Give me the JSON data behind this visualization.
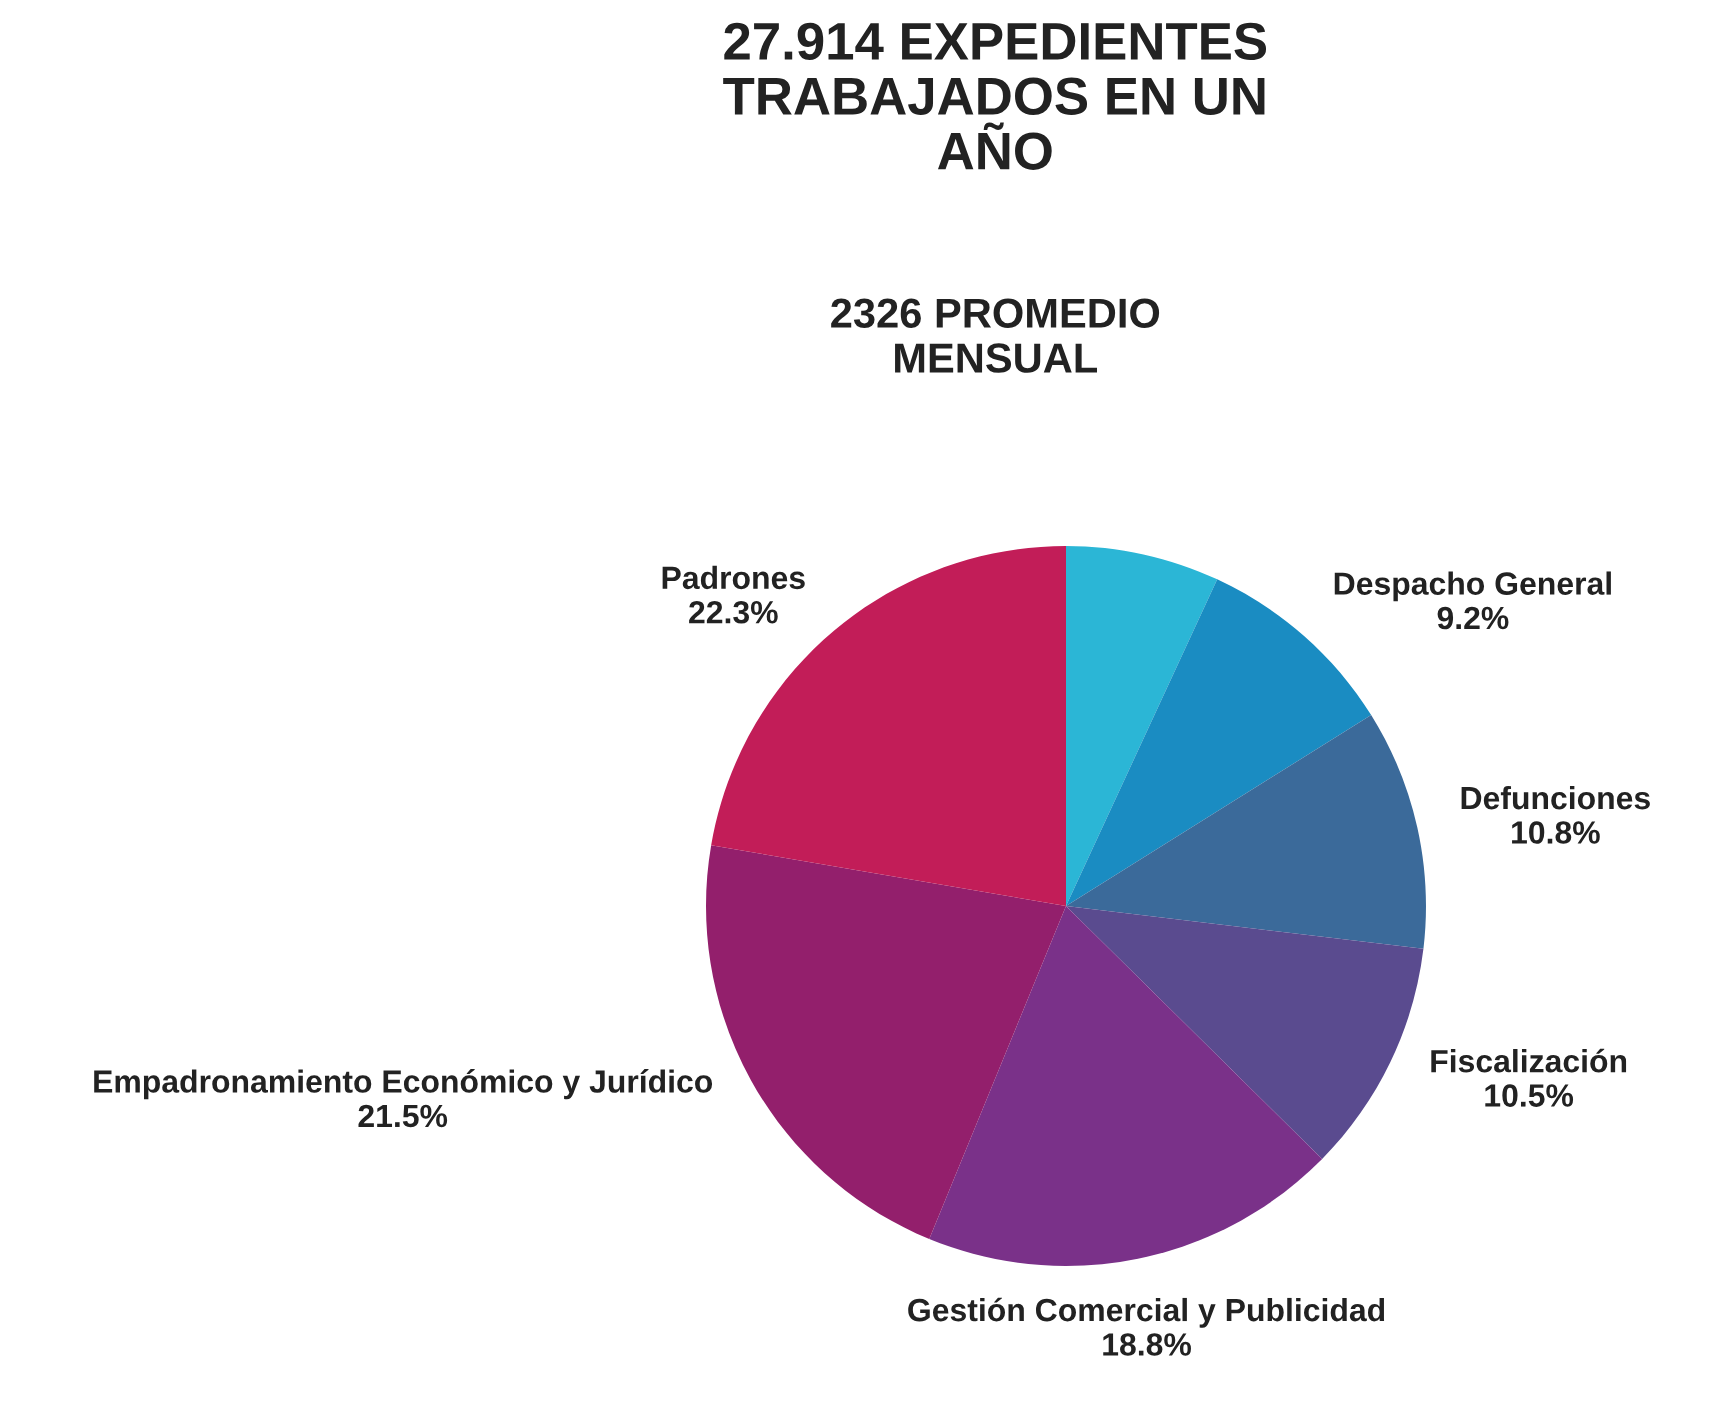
{
  "chart_data": {
    "type": "pie",
    "title": "27.914 EXPEDIENTES\nTRABAJADOS EN UN\nAÑO",
    "subtitle": "2326 PROMEDIO\nMENSUAL",
    "categories": [
      null,
      "Despacho General",
      "Defunciones",
      "Fiscalización",
      "Gestión Comercial y Publicidad",
      "Empadronamiento Económico y Jurídico",
      "Padrones"
    ],
    "values": [
      6.9,
      9.2,
      10.8,
      10.5,
      18.8,
      21.5,
      22.3
    ],
    "value_labels": [
      null,
      "9.2%",
      "10.8%",
      "10.5%",
      "18.8%",
      "21.5%",
      "22.3%"
    ],
    "colors": [
      "#2bb6d6",
      "#1a8cc2",
      "#3b6a9a",
      "#5a4b8f",
      "#7a3189",
      "#931f6c",
      "#c21d58"
    ],
    "legend": false
  }
}
